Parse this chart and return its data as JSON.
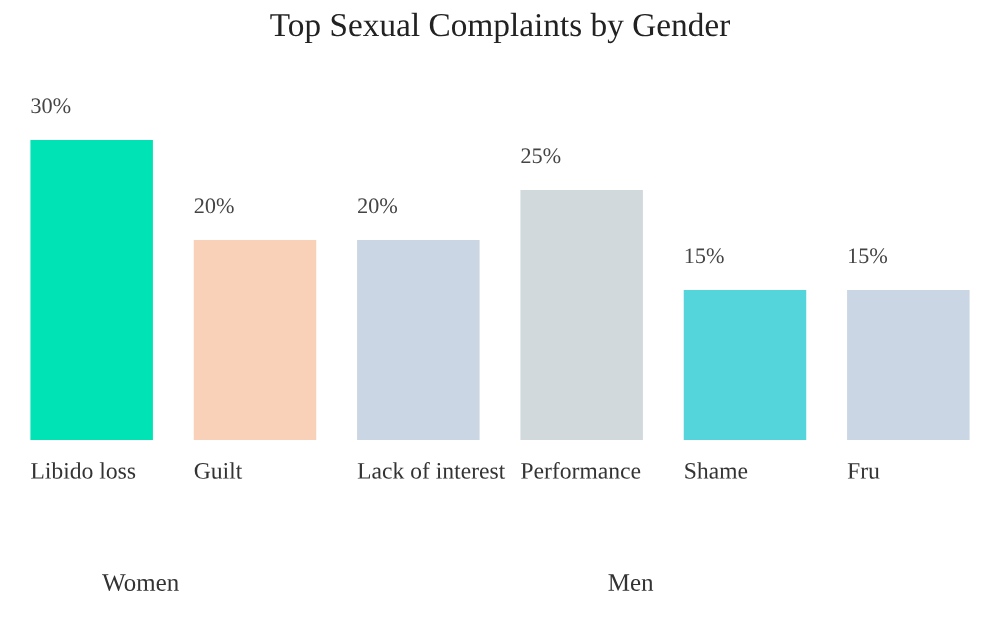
{
  "chart_data": {
    "type": "bar",
    "title": "Top Sexual Complaints by Gender",
    "categories": [
      "Libido loss",
      "Guilt",
      "Lack of interest",
      "Performance",
      "Shame",
      "Fru"
    ],
    "values": [
      30,
      20,
      20,
      25,
      15,
      15
    ],
    "colors": [
      "#00e3b4",
      "#f9d1b9",
      "#cbd6e4",
      "#d1d9dc",
      "#54d5dc",
      "#cbd6e4"
    ],
    "value_labels": [
      "30%",
      "20%",
      "20%",
      "25%",
      "15%",
      "15%"
    ],
    "annotations": [
      "Women",
      "Men"
    ]
  }
}
